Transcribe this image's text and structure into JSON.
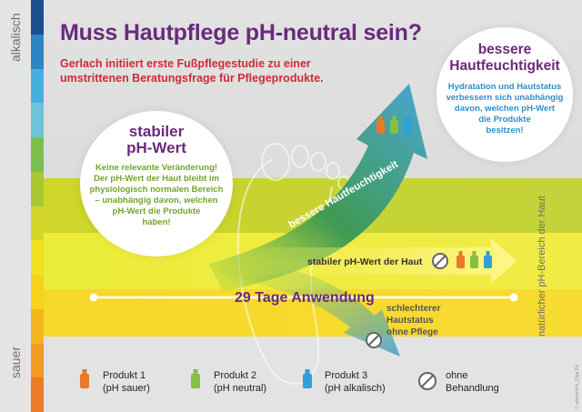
{
  "header": {
    "title": "Muss Hautpflege pH-neutral sein?",
    "subtitle": "Gerlach initiiert erste Fußpflegestudie zu einer umstrittenen Beratungsfrage für Pflegeprodukte."
  },
  "scale": {
    "top_label": "alkalisch",
    "bottom_label": "sauer",
    "right_label": "natürlicher pH-Bereich der Haut",
    "colors": [
      "#1a4f8f",
      "#2a86c5",
      "#45b0e0",
      "#6ec3d9",
      "#7bbf4a",
      "#a9c832",
      "#d4d62b",
      "#f1e020",
      "#f6d21a",
      "#f5b51e",
      "#f29a23",
      "#ec7c25"
    ]
  },
  "bubbles": {
    "left": {
      "heading": "stabiler pH-Wert",
      "lines": [
        "Keine relevante Veränderung!",
        "Der pH-Wert der Haut bleibt im",
        "physiologisch normalen Bereich",
        "– unabhängig davon, welchen",
        "pH-Wert die Produkte",
        "haben!"
      ]
    },
    "right": {
      "heading": "bessere Hautfeuchtigkeit",
      "lines": [
        "Hydratation und Hautstatus",
        "verbessern sich unabhängig",
        "davon, welchen pH-Wert",
        "die Produkte",
        "besitzen!"
      ]
    }
  },
  "arrows": {
    "up": "bessere Hautfeuchtigkeit",
    "flat": "stabiler pH-Wert der Haut",
    "down_lines": [
      "schlechterer",
      "Hautstatus",
      "ohne Pflege"
    ]
  },
  "timeline": {
    "label": "29 Tage Anwendung"
  },
  "legend": [
    {
      "name": "Produkt 1",
      "detail": "(pH sauer)",
      "color": "#e8792a"
    },
    {
      "name": "Produkt 2",
      "detail": "(pH neutral)",
      "color": "#86bf45"
    },
    {
      "name": "Produkt 3",
      "detail": "(pH alkalisch)",
      "color": "#2f9fd9"
    },
    {
      "name": "ohne",
      "detail": "Behandlung",
      "color": "#666666"
    }
  ],
  "credit": "© adoronlink_Olga Re"
}
